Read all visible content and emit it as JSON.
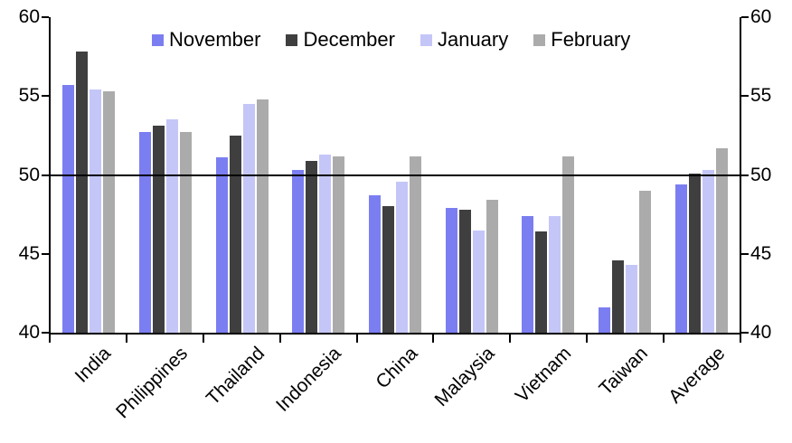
{
  "chart_data": {
    "type": "bar",
    "title": "",
    "categories": [
      "India",
      "Philippines",
      "Thailand",
      "Indonesia",
      "China",
      "Malaysia",
      "Vietnam",
      "Taiwan",
      "Average"
    ],
    "series": [
      {
        "name": "November",
        "color": "#7b7ef0",
        "texture": "solid",
        "values": [
          55.7,
          52.7,
          51.1,
          50.3,
          48.7,
          47.9,
          47.4,
          41.6,
          49.4
        ]
      },
      {
        "name": "December",
        "color": "#3f3f3f",
        "texture": "fine-hatch",
        "values": [
          57.8,
          53.1,
          52.5,
          50.9,
          48.0,
          47.8,
          46.4,
          44.6,
          50.1
        ]
      },
      {
        "name": "January",
        "color": "#c4c6f8",
        "texture": "solid",
        "values": [
          55.4,
          53.5,
          54.5,
          51.3,
          49.6,
          46.5,
          47.4,
          44.3,
          50.3
        ]
      },
      {
        "name": "February",
        "color": "#ababab",
        "texture": "dots",
        "values": [
          55.3,
          52.7,
          54.8,
          51.2,
          51.2,
          48.4,
          51.2,
          49.0,
          51.7
        ]
      }
    ],
    "y_axis": {
      "min": 40,
      "max": 60,
      "tick_interval": 5,
      "ticks_left": [
        "60",
        "55",
        "50",
        "45",
        "40"
      ],
      "ticks_right": [
        "60",
        "55",
        "50",
        "45",
        "40"
      ]
    },
    "reference_line": 50,
    "legend_position": "top",
    "grid": false,
    "axis_color": "#000000",
    "background": "#ffffff"
  }
}
